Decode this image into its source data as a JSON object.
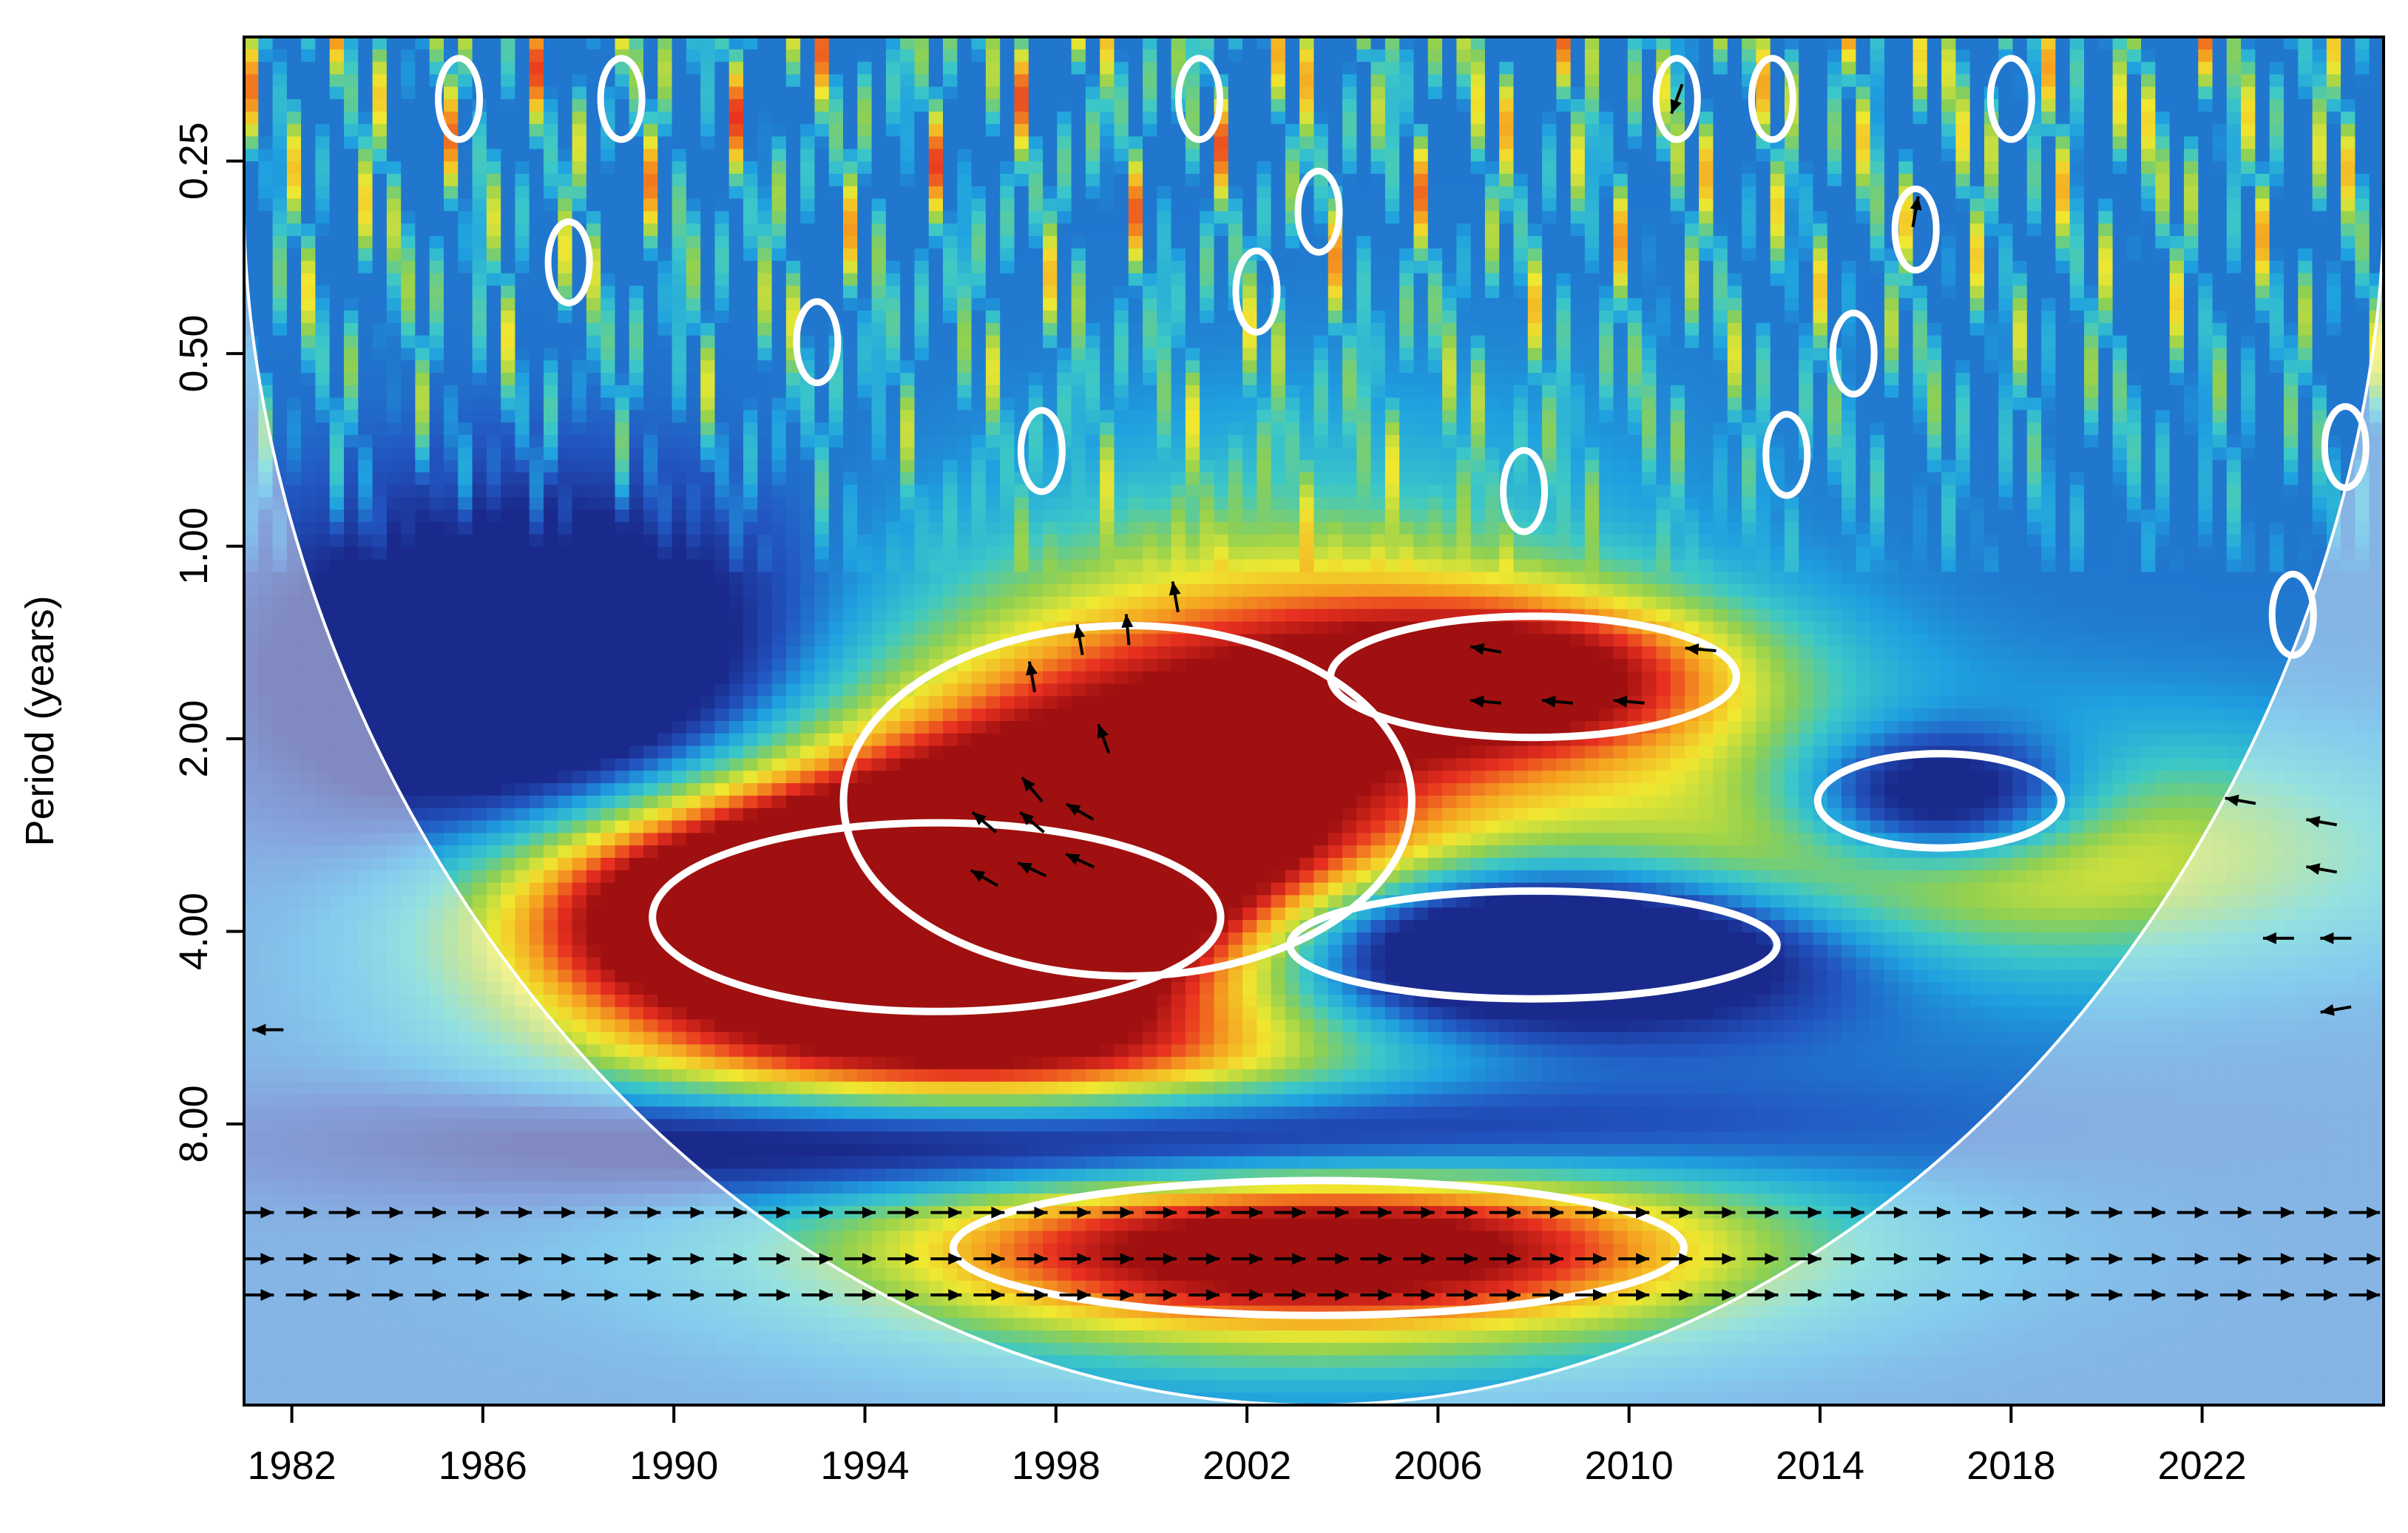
{
  "chart_data": {
    "type": "heatmap",
    "title": "",
    "xlabel": "",
    "ylabel": "Period (years)",
    "x_tick_labels": [
      "1982",
      "1986",
      "1990",
      "1994",
      "1998",
      "2002",
      "2006",
      "2010",
      "2014",
      "2018",
      "2022"
    ],
    "x_ticks": [
      1982,
      1986,
      1990,
      1994,
      1998,
      2002,
      2006,
      2010,
      2014,
      2018,
      2022
    ],
    "xlim": [
      1981,
      2025.8
    ],
    "y_tick_labels": [
      "0.25",
      "0.50",
      "1.00",
      "2.00",
      "4.00",
      "8.00"
    ],
    "y_ticks": [
      0.25,
      0.5,
      1,
      2,
      4,
      8
    ],
    "y_scale": "log2",
    "y_reversed": true,
    "ylim": [
      0.16,
      22
    ],
    "grid": false,
    "legend": "none",
    "colormap": [
      "#1a2a8c",
      "#2255c0",
      "#1fa0e0",
      "#3cc8c8",
      "#90d050",
      "#f0e830",
      "#f5a020",
      "#e83020",
      "#a01010"
    ],
    "cone_of_influence_color": "#ffffff",
    "significance_contour_color": "#ffffff",
    "power_features": [
      {
        "x": 1999.5,
        "period": 2.5,
        "x_width": 7,
        "period_width_octaves": 1.3,
        "power": 0.95,
        "angle": 0.35
      },
      {
        "x": 1995.5,
        "period": 3.8,
        "x_width": 7,
        "period_width_octaves": 0.7,
        "power": 0.85,
        "angle": 0.2
      },
      {
        "x": 1990.5,
        "period": 3.6,
        "x_width": 5,
        "period_width_octaves": 0.6,
        "power": 0.6,
        "angle": 0.1
      },
      {
        "x": 2008.0,
        "period": 1.6,
        "x_width": 5,
        "period_width_octaves": 0.45,
        "power": 0.75,
        "angle": 0
      },
      {
        "x": 2003.5,
        "period": 12.5,
        "x_width": 9,
        "period_width_octaves": 0.5,
        "power": 1.0,
        "angle": 0
      },
      {
        "x": 2016.5,
        "period": 3.0,
        "x_width": 9,
        "period_width_octaves": 0.6,
        "power": 0.55,
        "angle": 0
      },
      {
        "x": 2008.0,
        "period": 4.2,
        "x_width": 6,
        "period_width_octaves": 0.4,
        "power": -0.8,
        "angle": 0
      },
      {
        "x": 2016.5,
        "period": 2.5,
        "x_width": 3,
        "period_width_octaves": 0.35,
        "power": -0.7,
        "angle": 0
      },
      {
        "x": 1987.0,
        "period": 1.6,
        "x_width": 5,
        "period_width_octaves": 0.8,
        "power": -0.6,
        "angle": 0
      },
      {
        "x": 1998.0,
        "period": 8.5,
        "x_width": 12,
        "period_width_octaves": 0.3,
        "power": -0.6,
        "angle": 0
      },
      {
        "x": 1998.0,
        "period": 6.5,
        "x_width": 8,
        "period_width_octaves": 0.35,
        "power": 0.35,
        "angle": 0
      }
    ],
    "significant_blobs": [
      {
        "x": 1985.5,
        "period": 0.2
      },
      {
        "x": 1987.8,
        "period": 0.36
      },
      {
        "x": 1988.9,
        "period": 0.2
      },
      {
        "x": 1993.0,
        "period": 0.48
      },
      {
        "x": 1997.7,
        "period": 0.71
      },
      {
        "x": 2001.0,
        "period": 0.2
      },
      {
        "x": 2002.2,
        "period": 0.4
      },
      {
        "x": 2003.5,
        "period": 0.3
      },
      {
        "x": 2007.8,
        "period": 0.82
      },
      {
        "x": 2011.0,
        "period": 0.2
      },
      {
        "x": 2013.0,
        "period": 0.2
      },
      {
        "x": 2014.7,
        "period": 0.5
      },
      {
        "x": 2013.3,
        "period": 0.72
      },
      {
        "x": 2016.0,
        "period": 0.32
      },
      {
        "x": 2018.0,
        "period": 0.2
      },
      {
        "x": 2025.0,
        "period": 0.7
      },
      {
        "x": 2023.9,
        "period": 1.28
      }
    ],
    "phase_arrows": [
      {
        "x": 1997.5,
        "period": 1.6,
        "angle": 100
      },
      {
        "x": 1998.5,
        "period": 1.4,
        "angle": 100
      },
      {
        "x": 1999.5,
        "period": 1.35,
        "angle": 95
      },
      {
        "x": 2000.5,
        "period": 1.2,
        "angle": 100
      },
      {
        "x": 1999.0,
        "period": 2.0,
        "angle": 110
      },
      {
        "x": 1997.5,
        "period": 2.4,
        "angle": 130
      },
      {
        "x": 1996.5,
        "period": 2.7,
        "angle": 140
      },
      {
        "x": 1997.5,
        "period": 2.7,
        "angle": 140
      },
      {
        "x": 1998.5,
        "period": 2.6,
        "angle": 150
      },
      {
        "x": 1996.5,
        "period": 3.3,
        "angle": 150
      },
      {
        "x": 1997.5,
        "period": 3.2,
        "angle": 155
      },
      {
        "x": 1998.5,
        "period": 3.1,
        "angle": 155
      },
      {
        "x": 2007.0,
        "period": 1.45,
        "angle": 170
      },
      {
        "x": 2011.5,
        "period": 1.45,
        "angle": 175
      },
      {
        "x": 2007.0,
        "period": 1.75,
        "angle": 175
      },
      {
        "x": 2008.5,
        "period": 1.75,
        "angle": 175
      },
      {
        "x": 2010.0,
        "period": 1.75,
        "angle": 175
      },
      {
        "x": 2022.8,
        "period": 2.5,
        "angle": 170
      },
      {
        "x": 2024.5,
        "period": 2.7,
        "angle": 170
      },
      {
        "x": 2024.5,
        "period": 3.2,
        "angle": 170
      },
      {
        "x": 2023.6,
        "period": 4.1,
        "angle": 180
      },
      {
        "x": 2024.8,
        "period": 4.1,
        "angle": 180
      },
      {
        "x": 2024.8,
        "period": 5.3,
        "angle": 190
      },
      {
        "x": 1981.5,
        "period": 5.7,
        "angle": 180
      },
      {
        "x": 2011.0,
        "period": 0.2,
        "angle": 250
      },
      {
        "x": 2016.0,
        "period": 0.3,
        "angle": 80
      }
    ],
    "low_band_arrows": {
      "periods": [
        11.0,
        13.0,
        14.8
      ],
      "x_start": 1981.3,
      "x_end": 2025.8,
      "x_step": 0.9,
      "angle": 0
    }
  }
}
